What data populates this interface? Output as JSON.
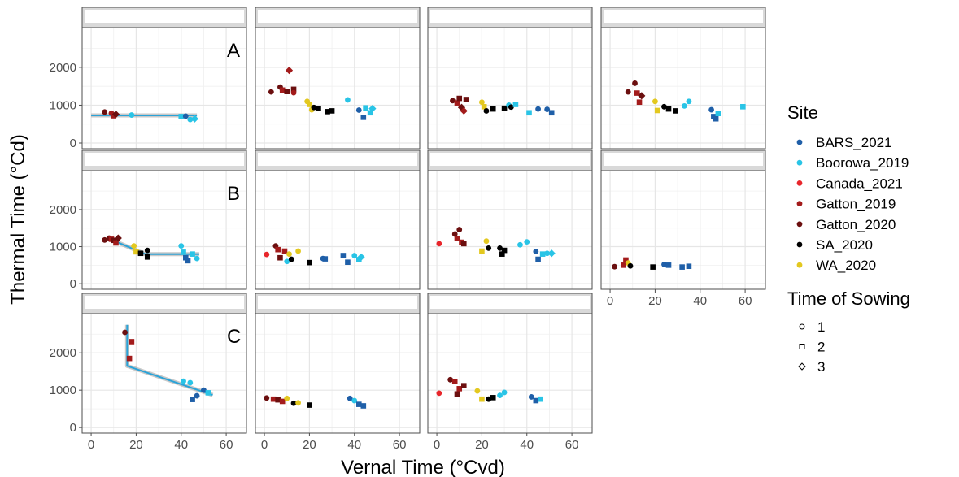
{
  "chart_data": {
    "type": "scatter",
    "xlabel": "Vernal Time (°Cvd)",
    "ylabel": "Thermal Time (°Cd)",
    "xlim": [
      -4,
      69
    ],
    "ylim": [
      -150,
      3050
    ],
    "xticks": [
      0,
      20,
      40,
      60
    ],
    "yticks": [
      0,
      1000,
      2000
    ],
    "grid": true,
    "legend": {
      "placement": "right",
      "site_title": "Site",
      "sites": [
        {
          "name": "BARS_2021",
          "color": "#1f5fa8"
        },
        {
          "name": "Boorowa_2019",
          "color": "#29c4e6"
        },
        {
          "name": "Canada_2021",
          "color": "#e8262b"
        },
        {
          "name": "Gatton_2019",
          "color": "#a31b1b"
        },
        {
          "name": "Gatton_2020",
          "color": "#6b0f0f"
        },
        {
          "name": "SA_2020",
          "color": "#000000"
        },
        {
          "name": "WA_2020",
          "color": "#e3c81f"
        }
      ],
      "shape_title": "Time of Sowing",
      "shapes": [
        {
          "label": "1",
          "shape": "circle"
        },
        {
          "label": "2",
          "shape": "square"
        },
        {
          "label": "3",
          "shape": "diamond"
        }
      ]
    },
    "fit_color": "#2aa3d8",
    "panels": [
      {
        "row": 0,
        "col": 0,
        "label": "A",
        "fit": [
          [
            0,
            730
          ],
          [
            47,
            730
          ]
        ],
        "points": [
          [
            6,
            820,
            "Gatton_2020",
            1
          ],
          [
            9,
            790,
            "Gatton_2019",
            1
          ],
          [
            10,
            720,
            "Gatton_2019",
            2
          ],
          [
            11,
            760,
            "Gatton_2020",
            3
          ],
          [
            18,
            740,
            "Boorowa_2019",
            1
          ],
          [
            40,
            700,
            "Boorowa_2019",
            2
          ],
          [
            42,
            710,
            "BARS_2021",
            1
          ],
          [
            44,
            620,
            "Boorowa_2019",
            1
          ],
          [
            46,
            640,
            "Boorowa_2019",
            3
          ]
        ]
      },
      {
        "row": 0,
        "col": 1,
        "label": "",
        "points": [
          [
            3,
            1350,
            "Gatton_2020",
            1
          ],
          [
            7,
            1480,
            "Gatton_2020",
            1
          ],
          [
            8,
            1400,
            "Gatton_2019",
            2
          ],
          [
            10,
            1360,
            "Gatton_2020",
            2
          ],
          [
            11,
            1920,
            "Gatton_2019",
            3
          ],
          [
            13,
            1420,
            "Gatton_2020",
            2
          ],
          [
            13,
            1330,
            "Gatton_2019",
            1
          ],
          [
            19,
            1100,
            "WA_2020",
            1
          ],
          [
            20,
            1020,
            "WA_2020",
            2
          ],
          [
            21,
            880,
            "WA_2020",
            1
          ],
          [
            22,
            940,
            "SA_2020",
            1
          ],
          [
            24,
            910,
            "SA_2020",
            2
          ],
          [
            28,
            830,
            "SA_2020",
            2
          ],
          [
            30,
            850,
            "SA_2020",
            2
          ],
          [
            37,
            1140,
            "Boorowa_2019",
            1
          ],
          [
            42,
            870,
            "BARS_2021",
            1
          ],
          [
            44,
            680,
            "BARS_2021",
            2
          ],
          [
            45,
            930,
            "Boorowa_2019",
            2
          ],
          [
            47,
            800,
            "Boorowa_2019",
            2
          ],
          [
            48,
            910,
            "Boorowa_2019",
            3
          ]
        ]
      },
      {
        "row": 0,
        "col": 2,
        "label": "",
        "points": [
          [
            7,
            1120,
            "Gatton_2020",
            1
          ],
          [
            9,
            1060,
            "Gatton_2019",
            2
          ],
          [
            10,
            1180,
            "Gatton_2020",
            2
          ],
          [
            11,
            940,
            "Gatton_2020",
            3
          ],
          [
            12,
            850,
            "Gatton_2019",
            3
          ],
          [
            13,
            1150,
            "Gatton_2020",
            2
          ],
          [
            20,
            1080,
            "WA_2020",
            1
          ],
          [
            21,
            960,
            "WA_2020",
            2
          ],
          [
            22,
            850,
            "SA_2020",
            1
          ],
          [
            25,
            900,
            "SA_2020",
            2
          ],
          [
            30,
            920,
            "SA_2020",
            2
          ],
          [
            32,
            1000,
            "Boorowa_2019",
            1
          ],
          [
            33,
            950,
            "SA_2020",
            1
          ],
          [
            35,
            1020,
            "Boorowa_2019",
            2
          ],
          [
            41,
            800,
            "Boorowa_2019",
            2
          ],
          [
            45,
            900,
            "BARS_2021",
            1
          ],
          [
            49,
            890,
            "BARS_2021",
            1
          ],
          [
            51,
            800,
            "BARS_2021",
            2
          ]
        ]
      },
      {
        "row": 0,
        "col": 3,
        "label": "",
        "points": [
          [
            8,
            1350,
            "Gatton_2020",
            1
          ],
          [
            11,
            1580,
            "Gatton_2020",
            1
          ],
          [
            12,
            1320,
            "Gatton_2019",
            2
          ],
          [
            13,
            1080,
            "Gatton_2019",
            2
          ],
          [
            14,
            1250,
            "Gatton_2020",
            3
          ],
          [
            20,
            1100,
            "WA_2020",
            1
          ],
          [
            21,
            860,
            "WA_2020",
            2
          ],
          [
            24,
            960,
            "SA_2020",
            1
          ],
          [
            26,
            900,
            "SA_2020",
            2
          ],
          [
            29,
            850,
            "SA_2020",
            2
          ],
          [
            33,
            980,
            "Boorowa_2019",
            1
          ],
          [
            35,
            1100,
            "Boorowa_2019",
            1
          ],
          [
            45,
            880,
            "BARS_2021",
            1
          ],
          [
            46,
            700,
            "BARS_2021",
            2
          ],
          [
            47,
            640,
            "BARS_2021",
            2
          ],
          [
            48,
            780,
            "Boorowa_2019",
            2
          ],
          [
            59,
            960,
            "Boorowa_2019",
            2
          ]
        ]
      },
      {
        "row": 1,
        "col": 0,
        "label": "B",
        "fit": [
          [
            7,
            1240
          ],
          [
            24,
            800
          ],
          [
            48,
            800
          ]
        ],
        "points": [
          [
            6,
            1180,
            "Gatton_2020",
            1
          ],
          [
            8,
            1230,
            "Gatton_2020",
            1
          ],
          [
            9,
            1200,
            "Gatton_2019",
            2
          ],
          [
            10,
            1170,
            "Gatton_2020",
            2
          ],
          [
            11,
            1100,
            "Gatton_2019",
            2
          ],
          [
            12,
            1230,
            "Gatton_2020",
            3
          ],
          [
            19,
            1020,
            "WA_2020",
            1
          ],
          [
            20,
            860,
            "WA_2020",
            2
          ],
          [
            22,
            820,
            "SA_2020",
            2
          ],
          [
            25,
            900,
            "SA_2020",
            1
          ],
          [
            25,
            720,
            "SA_2020",
            2
          ],
          [
            40,
            1020,
            "Boorowa_2019",
            1
          ],
          [
            41,
            850,
            "Boorowa_2019",
            2
          ],
          [
            42,
            700,
            "BARS_2021",
            2
          ],
          [
            43,
            620,
            "BARS_2021",
            2
          ],
          [
            45,
            800,
            "Boorowa_2019",
            2
          ],
          [
            47,
            680,
            "Boorowa_2019",
            1
          ]
        ]
      },
      {
        "row": 1,
        "col": 1,
        "label": "",
        "points": [
          [
            1,
            790,
            "Canada_2021",
            1
          ],
          [
            5,
            1020,
            "Gatton_2020",
            1
          ],
          [
            6,
            920,
            "Gatton_2019",
            2
          ],
          [
            7,
            700,
            "Gatton_2020",
            2
          ],
          [
            9,
            880,
            "Gatton_2019",
            2
          ],
          [
            10,
            600,
            "Boorowa_2019",
            1
          ],
          [
            11,
            800,
            "WA_2020",
            1
          ],
          [
            12,
            660,
            "SA_2020",
            1
          ],
          [
            15,
            880,
            "WA_2020",
            1
          ],
          [
            20,
            570,
            "SA_2020",
            2
          ],
          [
            26,
            680,
            "BARS_2021",
            1
          ],
          [
            27,
            670,
            "BARS_2021",
            2
          ],
          [
            35,
            760,
            "BARS_2021",
            2
          ],
          [
            37,
            580,
            "BARS_2021",
            2
          ],
          [
            40,
            760,
            "Boorowa_2019",
            1
          ],
          [
            42,
            650,
            "Boorowa_2019",
            2
          ],
          [
            43,
            720,
            "Boorowa_2019",
            3
          ]
        ]
      },
      {
        "row": 1,
        "col": 2,
        "label": "",
        "points": [
          [
            1,
            1080,
            "Canada_2021",
            1
          ],
          [
            8,
            1340,
            "Gatton_2020",
            1
          ],
          [
            9,
            1220,
            "Gatton_2019",
            2
          ],
          [
            10,
            1460,
            "Gatton_2020",
            1
          ],
          [
            11,
            1120,
            "Gatton_2019",
            2
          ],
          [
            12,
            1080,
            "Gatton_2020",
            2
          ],
          [
            20,
            880,
            "WA_2020",
            2
          ],
          [
            22,
            1150,
            "WA_2020",
            1
          ],
          [
            23,
            960,
            "SA_2020",
            1
          ],
          [
            28,
            960,
            "SA_2020",
            1
          ],
          [
            29,
            800,
            "SA_2020",
            2
          ],
          [
            30,
            900,
            "SA_2020",
            2
          ],
          [
            37,
            1050,
            "Boorowa_2019",
            1
          ],
          [
            40,
            1130,
            "Boorowa_2019",
            1
          ],
          [
            44,
            870,
            "BARS_2021",
            1
          ],
          [
            45,
            660,
            "BARS_2021",
            2
          ],
          [
            47,
            800,
            "Boorowa_2019",
            2
          ],
          [
            49,
            820,
            "Boorowa_2019",
            1
          ],
          [
            51,
            820,
            "Boorowa_2019",
            3
          ]
        ]
      },
      {
        "row": 1,
        "col": 3,
        "label": "",
        "points": [
          [
            2,
            460,
            "Gatton_2020",
            1
          ],
          [
            6,
            500,
            "Gatton_2019",
            2
          ],
          [
            7,
            640,
            "Gatton_2019",
            2
          ],
          [
            8,
            560,
            "WA_2020",
            1
          ],
          [
            9,
            480,
            "SA_2020",
            1
          ],
          [
            19,
            450,
            "SA_2020",
            2
          ],
          [
            24,
            520,
            "BARS_2021",
            1
          ],
          [
            26,
            500,
            "BARS_2021",
            2
          ],
          [
            32,
            450,
            "BARS_2021",
            2
          ],
          [
            35,
            470,
            "BARS_2021",
            2
          ]
        ]
      },
      {
        "row": 2,
        "col": 0,
        "label": "C",
        "fit": [
          [
            16,
            2750
          ],
          [
            16,
            1650
          ],
          [
            54,
            870
          ]
        ],
        "points": [
          [
            15,
            2550,
            "Gatton_2020",
            1
          ],
          [
            18,
            2300,
            "Gatton_2019",
            2
          ],
          [
            17,
            1850,
            "Gatton_2019",
            2
          ],
          [
            41,
            1240,
            "Boorowa_2019",
            1
          ],
          [
            44,
            1200,
            "Boorowa_2019",
            1
          ],
          [
            45,
            750,
            "BARS_2021",
            2
          ],
          [
            47,
            850,
            "BARS_2021",
            1
          ],
          [
            50,
            1000,
            "BARS_2021",
            1
          ],
          [
            52,
            930,
            "Boorowa_2019",
            2
          ]
        ]
      },
      {
        "row": 2,
        "col": 1,
        "label": "",
        "points": [
          [
            1,
            790,
            "Gatton_2020",
            1
          ],
          [
            4,
            760,
            "Gatton_2019",
            2
          ],
          [
            6,
            740,
            "Gatton_2020",
            2
          ],
          [
            8,
            700,
            "Gatton_2019",
            2
          ],
          [
            10,
            780,
            "WA_2020",
            1
          ],
          [
            13,
            650,
            "SA_2020",
            1
          ],
          [
            15,
            660,
            "WA_2020",
            1
          ],
          [
            20,
            600,
            "SA_2020",
            2
          ],
          [
            38,
            780,
            "BARS_2021",
            1
          ],
          [
            40,
            720,
            "Boorowa_2019",
            1
          ],
          [
            42,
            620,
            "BARS_2021",
            2
          ],
          [
            44,
            580,
            "BARS_2021",
            2
          ]
        ]
      },
      {
        "row": 2,
        "col": 2,
        "label": "",
        "points": [
          [
            1,
            920,
            "Canada_2021",
            1
          ],
          [
            6,
            1280,
            "Gatton_2020",
            1
          ],
          [
            8,
            1230,
            "Gatton_2019",
            2
          ],
          [
            9,
            900,
            "Gatton_2020",
            2
          ],
          [
            10,
            1040,
            "Gatton_2019",
            2
          ],
          [
            12,
            1120,
            "Gatton_2020",
            2
          ],
          [
            18,
            980,
            "WA_2020",
            1
          ],
          [
            20,
            760,
            "WA_2020",
            2
          ],
          [
            23,
            760,
            "SA_2020",
            1
          ],
          [
            25,
            800,
            "SA_2020",
            2
          ],
          [
            28,
            860,
            "Boorowa_2019",
            1
          ],
          [
            30,
            940,
            "Boorowa_2019",
            1
          ],
          [
            42,
            820,
            "BARS_2021",
            1
          ],
          [
            44,
            720,
            "BARS_2021",
            2
          ],
          [
            46,
            760,
            "Boorowa_2019",
            2
          ]
        ]
      }
    ]
  }
}
